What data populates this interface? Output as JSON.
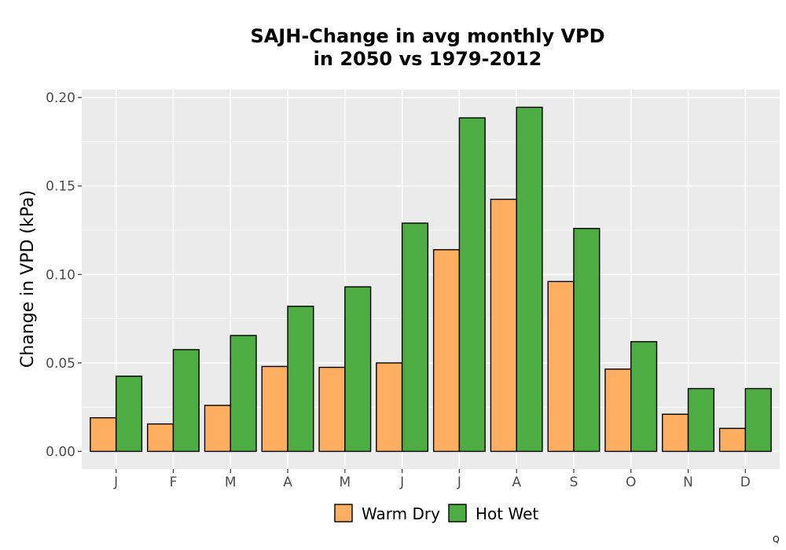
{
  "chart_data": {
    "type": "bar",
    "title_line1": "SAJH-Change in avg monthly VPD",
    "title_line2": "in 2050 vs 1979-2012",
    "xlabel": "",
    "ylabel": "Change in VPD (kPa)",
    "categories": [
      "J",
      "F",
      "M",
      "A",
      "M",
      "J",
      "J",
      "A",
      "S",
      "O",
      "N",
      "D"
    ],
    "series": [
      {
        "name": "Warm Dry",
        "color": "#FDAE61",
        "values": [
          0.019,
          0.0155,
          0.026,
          0.048,
          0.0475,
          0.05,
          0.114,
          0.1425,
          0.096,
          0.0465,
          0.021,
          0.013
        ]
      },
      {
        "name": "Hot Wet",
        "color": "#4DAC42",
        "values": [
          0.0425,
          0.0575,
          0.0655,
          0.082,
          0.093,
          0.129,
          0.1885,
          0.1945,
          0.126,
          0.062,
          0.0355,
          0.0355
        ]
      }
    ],
    "ylim": [
      -0.01,
      0.2045
    ],
    "yticks": [
      0.0,
      0.05,
      0.1,
      0.15,
      0.2
    ],
    "ytick_labels": [
      "0.00",
      "0.05",
      "0.10",
      "0.15",
      "0.20"
    ],
    "grid": true,
    "panel_background": "#EBEBEB",
    "legend_position": "bottom",
    "corner_mark": "Q"
  }
}
